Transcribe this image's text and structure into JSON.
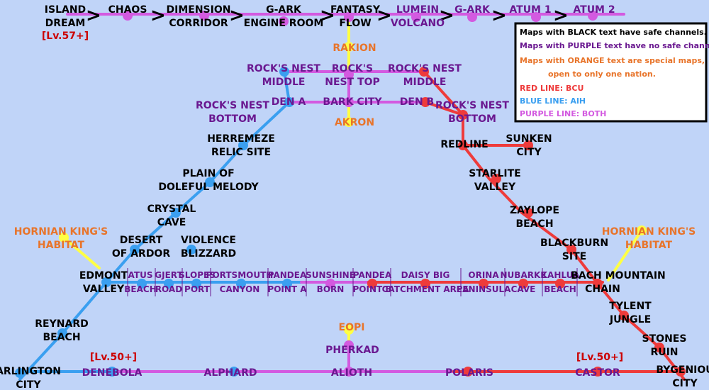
{
  "colors": {
    "background": "#c0d4f8",
    "bcu": "#ee3b3b",
    "aih": "#3a9ff0",
    "both": "#d35ae0",
    "special": "#ffff44",
    "safe_text": "#000000",
    "unsafe_text": "#6a1890",
    "special_text": "#e8742a",
    "level_text": "#cc0000"
  },
  "top_row": [
    "ISLAND DREAM",
    "CHAOS",
    "DIMENSION CORRIDOR",
    "G-ARK ENGINE ROOM",
    "FANTASY FLOW",
    "LUMEIN VOLCANO",
    "G-ARK",
    "ATUM 1",
    "ATUM 2"
  ],
  "level_requirements": [
    "[Lv.57+]",
    "[Lv.50+]",
    "[Lv.50+]"
  ],
  "maps": {
    "safe": [
      "ISLAND DREAM",
      "CHAOS",
      "DIMENSION CORRIDOR",
      "G-ARK ENGINE ROOM",
      "FANTASY FLOW",
      "HERREMEZE RELIC SITE",
      "PLAIN OF DOLEFUL MELODY",
      "CRYSTAL CAVE",
      "DESERT OF ARDOR",
      "VIOLENCE BLIZZARD",
      "EDMONT VALLEY",
      "REYNARD BEACH",
      "ARLINGTON CITY",
      "REDLINE",
      "SUNKEN CITY",
      "STARLITE VALLEY",
      "ZAYLOPE BEACH",
      "BLACKBURN SITE",
      "BACH MOUNTAIN CHAIN",
      "TYLENT JUNGLE",
      "STONES RUIN",
      "BYGENIOU CITY"
    ],
    "no_safe": [
      "LUMEIN VOLCANO",
      "G-ARK",
      "ATUM 1",
      "ATUM 2",
      "ROCK'S NEST MIDDLE",
      "ROCK'S NEST NEST TOP",
      "ROCK'S NEST MIDDLE (BCU)",
      "ROCK'S NEST BOTTOM",
      "DEN A",
      "BARK CITY",
      "DEN B",
      "ROCK'S NEST BOTTOM (BCU)",
      "ATUS BEACH",
      "GJERT ROAD",
      "SLOPES PORT",
      "PORTSMOUTH CANYON",
      "PANDEA POINT A",
      "SUNSHINE BORN",
      "PANDEA POINT B",
      "DAISY BIG CATCHMENT AREA",
      "ORINA PENINSULA",
      "NUBARKE CAVE",
      "KAHLUA BEACH",
      "PHERKAD",
      "DENEBOLA",
      "ALPHARD",
      "ALIOTH",
      "POLARIS",
      "CASTOR"
    ],
    "special": [
      "RAKION",
      "AKRON",
      "HORNIAN KING'S HABITAT",
      "EOPI"
    ]
  },
  "legend": {
    "line1": "Maps with BLACK text have safe channels.",
    "line2": "Maps with PURPLE text have no safe channels.",
    "line3": "Maps with ORANGE text are special maps,",
    "line4": "open to only one nation.",
    "line5": "RED LINE: BCU",
    "line6": "BLUE LINE: AIH",
    "line7": "PURPLE LINE: BOTH"
  }
}
